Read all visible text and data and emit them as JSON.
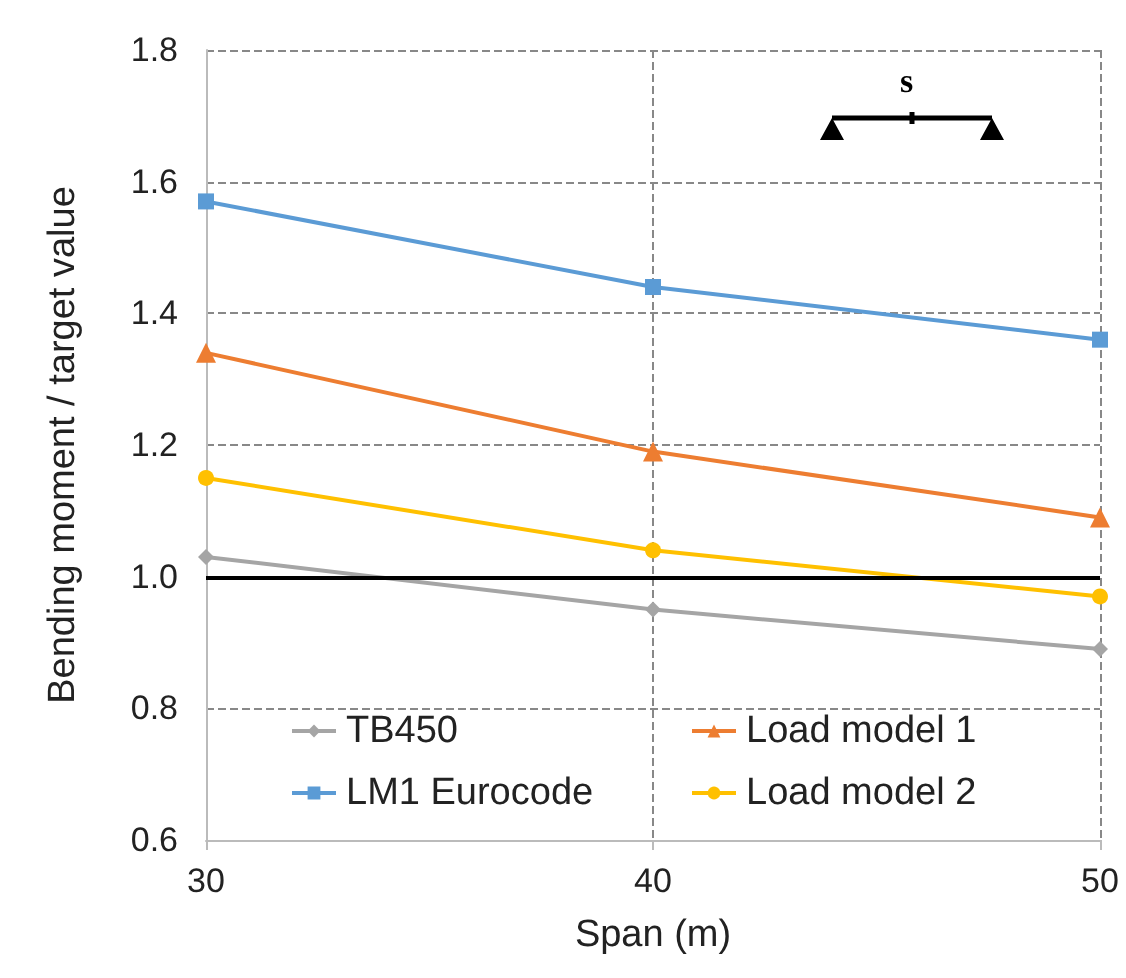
{
  "chart_data": {
    "type": "line",
    "xlabel": "Span (m)",
    "ylabel": "Bending moment / target value",
    "x": [
      30,
      40,
      50
    ],
    "xlim": [
      30,
      50
    ],
    "xticks": [
      30,
      40,
      50
    ],
    "ylim": [
      0.6,
      1.8
    ],
    "yticks": [
      0.6,
      0.8,
      {
        "value": 1,
        "label": "1.0"
      },
      1.2,
      1.4,
      1.6,
      1.8
    ],
    "series": [
      {
        "name": "TB450",
        "color": "#a5a5a5",
        "marker": "diamond",
        "values": [
          1.03,
          0.95,
          0.89
        ]
      },
      {
        "name": "LM1 Eurocode",
        "color": "#5b9bd5",
        "marker": "square",
        "values": [
          1.57,
          1.44,
          1.36
        ]
      },
      {
        "name": "Load model 1",
        "color": "#ed7d31",
        "marker": "triangle",
        "values": [
          1.34,
          1.19,
          1.09
        ]
      },
      {
        "name": "Load model 2",
        "color": "#ffc000",
        "marker": "circle",
        "values": [
          1.15,
          1.04,
          0.97
        ]
      }
    ],
    "ref_lines": [
      {
        "axis": "y",
        "value": 1.0,
        "color": "#000000"
      }
    ],
    "annotations": [
      "s"
    ],
    "grid": true,
    "legend": "bottom"
  }
}
